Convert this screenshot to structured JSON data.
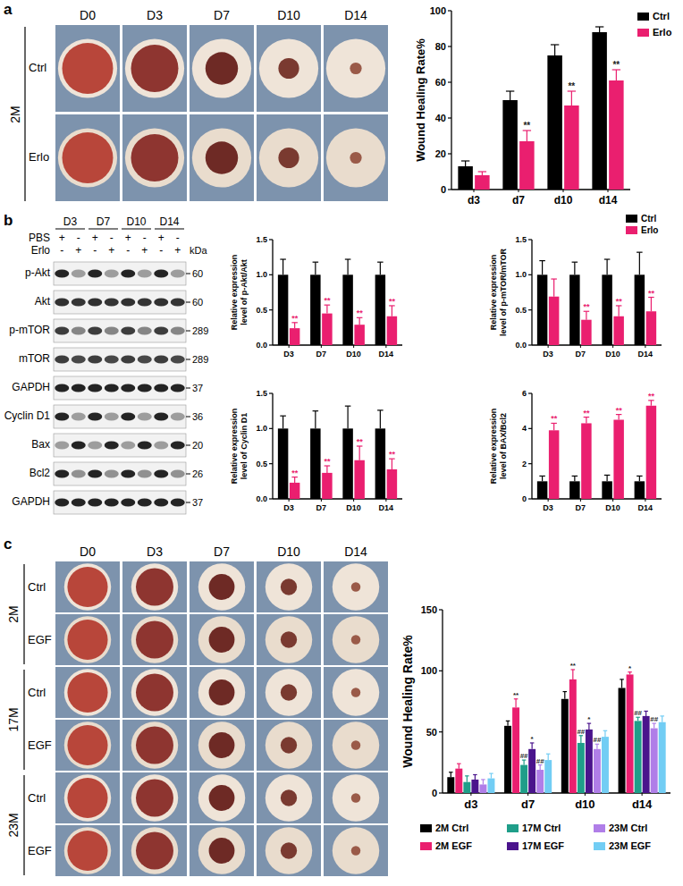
{
  "chart_data": [
    {
      "type": "bar",
      "y_label": "Wound Healing Rate%",
      "categories": [
        "d3",
        "d7",
        "d10",
        "d14"
      ],
      "ylim": [
        0,
        100
      ],
      "yticks": [
        0,
        20,
        40,
        60,
        80,
        100
      ],
      "legend": "top-right",
      "series": [
        {
          "name": "Ctrl",
          "color": "#000000",
          "values": [
            13,
            50,
            75,
            88
          ],
          "errors": [
            3,
            5,
            6,
            3
          ]
        },
        {
          "name": "Erlo",
          "color": "#ea1f6f",
          "values": [
            8,
            27,
            47,
            61
          ],
          "errors": [
            2,
            6,
            8,
            6
          ],
          "annotations": [
            null,
            "**",
            "**",
            "**"
          ]
        }
      ]
    },
    {
      "type": "bar",
      "y_label": "Relative expression level of p-Akt/Akt",
      "categories": [
        "D3",
        "D7",
        "D10",
        "D14"
      ],
      "ylim": [
        0,
        1.5
      ],
      "yticks": [
        {
          "value": 0,
          "label": "0.0"
        },
        {
          "value": 0.5,
          "label": "0.5"
        },
        {
          "value": 1,
          "label": "1.0"
        },
        {
          "value": 1.5,
          "label": "1.5"
        }
      ],
      "series": [
        {
          "name": "Ctrl",
          "color": "#000000",
          "values": [
            1,
            1,
            1,
            1
          ],
          "errors": [
            0.22,
            0.18,
            0.22,
            0.18
          ]
        },
        {
          "name": "Erlo",
          "color": "#ea1f6f",
          "values": [
            0.24,
            0.45,
            0.29,
            0.41
          ],
          "errors": [
            0.08,
            0.12,
            0.1,
            0.15
          ],
          "annotations": [
            "**",
            "**",
            "**",
            "**"
          ]
        }
      ]
    },
    {
      "type": "bar",
      "y_label": "Relative expression level of p-mTOR/mTOR",
      "categories": [
        "D3",
        "D7",
        "D10",
        "D14"
      ],
      "ylim": [
        0,
        1.5
      ],
      "yticks": [
        {
          "value": 0,
          "label": "0.0"
        },
        {
          "value": 0.5,
          "label": "0.5"
        },
        {
          "value": 1,
          "label": "1.0"
        },
        {
          "value": 1.5,
          "label": "1.5"
        }
      ],
      "legend": "top-right",
      "series": [
        {
          "name": "Ctrl",
          "color": "#000000",
          "values": [
            1,
            1,
            1,
            1
          ],
          "errors": [
            0.2,
            0.18,
            0.22,
            0.32
          ]
        },
        {
          "name": "Erlo",
          "color": "#ea1f6f",
          "values": [
            0.69,
            0.36,
            0.41,
            0.48
          ],
          "errors": [
            0.25,
            0.12,
            0.15,
            0.2
          ],
          "annotations": [
            null,
            "**",
            "**",
            "**"
          ]
        }
      ]
    },
    {
      "type": "bar",
      "y_label": "Relative expression level of Cyclin D1",
      "categories": [
        "D3",
        "D7",
        "D10",
        "D14"
      ],
      "ylim": [
        0,
        1.5
      ],
      "yticks": [
        {
          "value": 0,
          "label": "0.0"
        },
        {
          "value": 0.5,
          "label": "0.5"
        },
        {
          "value": 1,
          "label": "1.0"
        },
        {
          "value": 1.5,
          "label": "1.5"
        }
      ],
      "series": [
        {
          "name": "Ctrl",
          "color": "#000000",
          "values": [
            1,
            1,
            1,
            1
          ],
          "errors": [
            0.18,
            0.25,
            0.32,
            0.26
          ]
        },
        {
          "name": "Erlo",
          "color": "#ea1f6f",
          "values": [
            0.23,
            0.37,
            0.55,
            0.42
          ],
          "errors": [
            0.08,
            0.1,
            0.2,
            0.15
          ],
          "annotations": [
            "**",
            "**",
            "**",
            "**"
          ]
        }
      ]
    },
    {
      "type": "bar",
      "y_label": "Relative expression level of BAX/Bcl2",
      "categories": [
        "D3",
        "D7",
        "D10",
        "D14"
      ],
      "ylim": [
        0,
        6
      ],
      "yticks": [
        0,
        2,
        4,
        6
      ],
      "series": [
        {
          "name": "Ctrl",
          "color": "#000000",
          "values": [
            1,
            1,
            1,
            1
          ],
          "errors": [
            0.3,
            0.3,
            0.35,
            0.3
          ]
        },
        {
          "name": "Erlo",
          "color": "#ea1f6f",
          "values": [
            3.9,
            4.3,
            4.5,
            5.3
          ],
          "errors": [
            0.4,
            0.35,
            0.3,
            0.3
          ],
          "annotations": [
            "**",
            "**",
            "**",
            "**"
          ]
        }
      ]
    },
    {
      "type": "bar",
      "y_label": "Wound Healing Rate%",
      "categories": [
        "d3",
        "d7",
        "d10",
        "d14"
      ],
      "ylim": [
        0,
        150
      ],
      "yticks": [
        0,
        50,
        100,
        150
      ],
      "legend": "bottom",
      "series": [
        {
          "name": "2M Ctrl",
          "color": "#000000",
          "values": [
            13,
            55,
            77,
            86
          ],
          "errors": [
            4,
            4,
            6,
            7
          ]
        },
        {
          "name": "2M EGF",
          "color": "#ea1f6f",
          "values": [
            20,
            70,
            93,
            97
          ],
          "errors": [
            4,
            7,
            8,
            2
          ],
          "annotations": [
            null,
            "**",
            "**",
            "*"
          ]
        },
        {
          "name": "17M Ctrl",
          "color": "#1f9e89",
          "values": [
            9,
            23,
            41,
            59
          ],
          "errors": [
            5,
            4,
            6,
            3
          ],
          "annotations": [
            null,
            "##",
            "##",
            "##"
          ]
        },
        {
          "name": "17M EGF",
          "color": "#4a148c",
          "values": [
            11,
            36,
            52,
            63
          ],
          "errors": [
            4,
            5,
            5,
            4
          ],
          "annotations": [
            null,
            "*",
            "*",
            null
          ]
        },
        {
          "name": "23M Ctrl",
          "color": "#b07ee8",
          "values": [
            7,
            19,
            36,
            53
          ],
          "errors": [
            4,
            4,
            4,
            4
          ],
          "annotations": [
            null,
            "##",
            "##",
            "##"
          ]
        },
        {
          "name": "23M EGF",
          "color": "#72cdf4",
          "values": [
            12,
            27,
            46,
            58
          ],
          "errors": [
            4,
            5,
            5,
            5
          ]
        }
      ]
    }
  ],
  "figure": {
    "panel_labels": [
      "a",
      "b",
      "c"
    ],
    "panel_a_photos": {
      "group": "2M",
      "columns": [
        "D0",
        "D3",
        "D7",
        "D10",
        "D14"
      ],
      "rows": [
        "Ctrl",
        "Erlo"
      ]
    },
    "panel_b_blot": {
      "timepoints": [
        "D3",
        "D7",
        "D10",
        "D14"
      ],
      "treatments": [
        {
          "name": "PBS",
          "signs": [
            "+",
            "-",
            "+",
            "-",
            "+",
            "-",
            "+",
            "-"
          ]
        },
        {
          "name": "Erlo",
          "signs": [
            "-",
            "+",
            "-",
            "+",
            "-",
            "+",
            "-",
            "+"
          ]
        }
      ],
      "unit": "kDa",
      "bands": [
        {
          "name": "p-Akt",
          "kda": 60
        },
        {
          "name": "Akt",
          "kda": 60
        },
        {
          "name": "p-mTOR",
          "kda": 289
        },
        {
          "name": "mTOR",
          "kda": 289
        },
        {
          "name": "GAPDH",
          "kda": 37
        },
        {
          "name": "Cyclin D1",
          "kda": 36
        },
        {
          "name": "Bax",
          "kda": 20
        },
        {
          "name": "Bcl2",
          "kda": 26
        },
        {
          "name": "GAPDH",
          "kda": 37
        }
      ]
    },
    "panel_c_photos": {
      "columns": [
        "D0",
        "D3",
        "D7",
        "D10",
        "D14"
      ],
      "groups": [
        {
          "name": "2M",
          "rows": [
            "Ctrl",
            "EGF"
          ]
        },
        {
          "name": "17M",
          "rows": [
            "Ctrl",
            "EGF"
          ]
        },
        {
          "name": "23M",
          "rows": [
            "Ctrl",
            "EGF"
          ]
        }
      ]
    }
  }
}
